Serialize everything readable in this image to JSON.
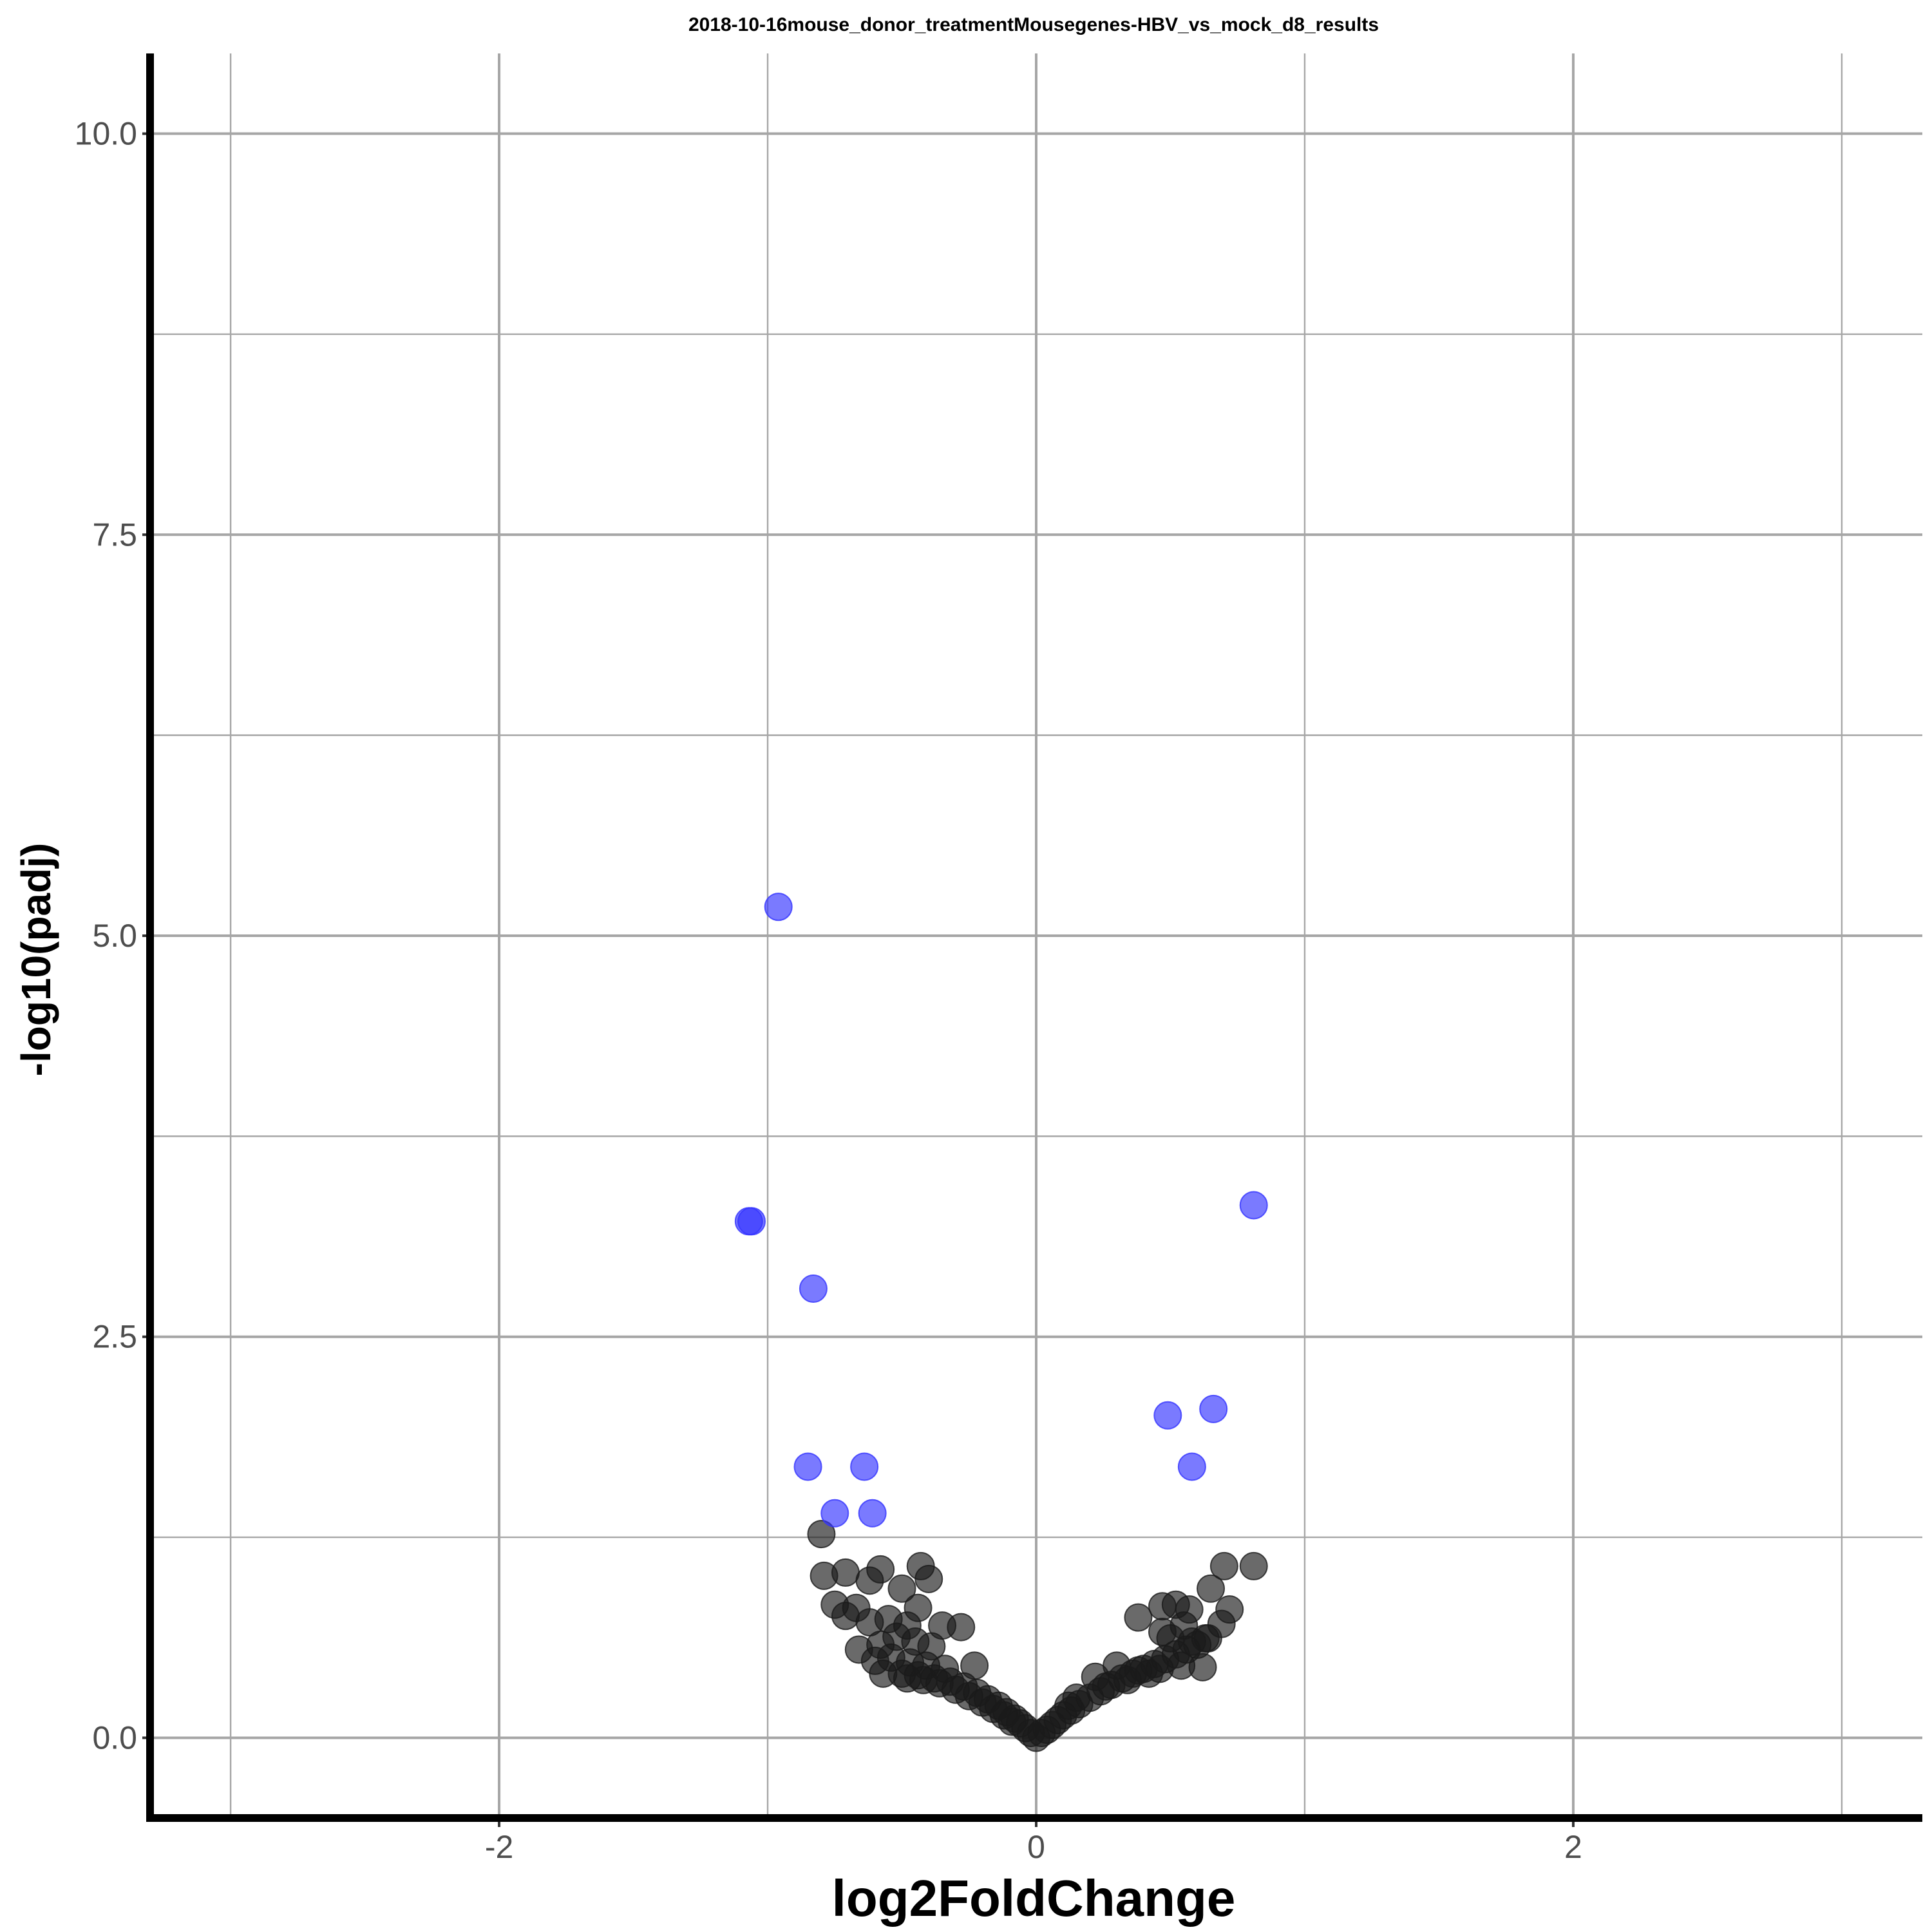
{
  "chart_data": {
    "type": "scatter",
    "title": "2018-10-16mouse_donor_treatmentMousegenes-HBV_vs_mock_d8_results",
    "xlabel": "log2FoldChange",
    "ylabel": "-log10(padj)",
    "xlim": [
      -3.3,
      3.3
    ],
    "ylim": [
      -0.5,
      10.5
    ],
    "x_ticks": [
      -2,
      0,
      2
    ],
    "x_tick_labels": [
      "-2",
      "0",
      "2"
    ],
    "x_minor": [
      -3,
      -1,
      1,
      3
    ],
    "y_ticks": [
      0,
      2.5,
      5,
      7.5,
      10
    ],
    "y_tick_labels": [
      "0.0",
      "2.5",
      "5.0",
      "7.5",
      "10.0"
    ],
    "y_minor": [
      1.25,
      3.75,
      6.25,
      8.75
    ],
    "grid": true,
    "legend": "none",
    "colors": {
      "significant": "#3333ff",
      "not_significant": "#1a1a1a",
      "grid": "#a6a6a6",
      "axis": "#000000"
    },
    "series": [
      {
        "points": [
          [
            -0.96,
            5.18
          ],
          [
            -1.07,
            3.22
          ],
          [
            -1.06,
            3.22
          ],
          [
            -0.83,
            2.8
          ],
          [
            -0.85,
            1.69
          ],
          [
            -0.64,
            1.69
          ],
          [
            -0.75,
            1.4
          ],
          [
            -0.61,
            1.4
          ],
          [
            0.49,
            2.01
          ],
          [
            0.66,
            2.05
          ],
          [
            0.58,
            1.69
          ],
          [
            0.81,
            3.32
          ]
        ]
      },
      {
        "points": [
          [
            -0.8,
            1.27
          ],
          [
            -0.79,
            1.01
          ],
          [
            -0.71,
            1.03
          ],
          [
            -0.62,
            0.98
          ],
          [
            -0.58,
            1.05
          ],
          [
            -0.43,
            1.07
          ],
          [
            -0.4,
            0.99
          ],
          [
            -0.5,
            0.93
          ],
          [
            -0.75,
            0.83
          ],
          [
            -0.67,
            0.81
          ],
          [
            -0.44,
            0.81
          ],
          [
            -0.71,
            0.76
          ],
          [
            -0.62,
            0.72
          ],
          [
            -0.55,
            0.74
          ],
          [
            -0.48,
            0.7
          ],
          [
            -0.35,
            0.7
          ],
          [
            -0.28,
            0.69
          ],
          [
            -0.52,
            0.63
          ],
          [
            -0.45,
            0.6
          ],
          [
            -0.39,
            0.57
          ],
          [
            -0.58,
            0.58
          ],
          [
            -0.66,
            0.55
          ],
          [
            -0.6,
            0.48
          ],
          [
            -0.54,
            0.5
          ],
          [
            -0.47,
            0.47
          ],
          [
            -0.41,
            0.45
          ],
          [
            -0.34,
            0.43
          ],
          [
            -0.23,
            0.45
          ],
          [
            -0.57,
            0.4
          ],
          [
            -0.5,
            0.4
          ],
          [
            -0.44,
            0.39
          ],
          [
            -0.38,
            0.37
          ],
          [
            -0.32,
            0.35
          ],
          [
            -0.27,
            0.32
          ],
          [
            -0.22,
            0.28
          ],
          [
            -0.18,
            0.24
          ],
          [
            -0.14,
            0.2
          ],
          [
            -0.11,
            0.16
          ],
          [
            -0.08,
            0.12
          ],
          [
            -0.06,
            0.09
          ],
          [
            -0.04,
            0.06
          ],
          [
            -0.02,
            0.03
          ],
          [
            -0.3,
            0.3
          ],
          [
            -0.25,
            0.26
          ],
          [
            -0.36,
            0.34
          ],
          [
            -0.42,
            0.36
          ],
          [
            -0.48,
            0.37
          ],
          [
            -0.2,
            0.22
          ],
          [
            -0.16,
            0.18
          ],
          [
            -0.12,
            0.14
          ],
          [
            -0.09,
            0.1
          ],
          [
            0.0,
            0.0
          ],
          [
            0.02,
            0.03
          ],
          [
            0.04,
            0.05
          ],
          [
            0.06,
            0.08
          ],
          [
            0.08,
            0.11
          ],
          [
            0.1,
            0.14
          ],
          [
            0.13,
            0.17
          ],
          [
            0.16,
            0.21
          ],
          [
            0.2,
            0.25
          ],
          [
            0.24,
            0.29
          ],
          [
            0.28,
            0.33
          ],
          [
            0.32,
            0.37
          ],
          [
            0.36,
            0.4
          ],
          [
            0.4,
            0.43
          ],
          [
            0.44,
            0.46
          ],
          [
            0.48,
            0.49
          ],
          [
            0.52,
            0.52
          ],
          [
            0.56,
            0.55
          ],
          [
            0.6,
            0.58
          ],
          [
            0.64,
            0.62
          ],
          [
            0.22,
            0.38
          ],
          [
            0.3,
            0.45
          ],
          [
            0.38,
            0.42
          ],
          [
            0.46,
            0.43
          ],
          [
            0.54,
            0.45
          ],
          [
            0.62,
            0.44
          ],
          [
            0.38,
            0.75
          ],
          [
            0.47,
            0.82
          ],
          [
            0.52,
            0.83
          ],
          [
            0.57,
            0.8
          ],
          [
            0.63,
            0.62
          ],
          [
            0.69,
            0.71
          ],
          [
            0.72,
            0.8
          ],
          [
            0.65,
            0.93
          ],
          [
            0.7,
            1.07
          ],
          [
            0.81,
            1.07
          ],
          [
            0.5,
            0.62
          ],
          [
            0.58,
            0.6
          ],
          [
            0.47,
            0.66
          ],
          [
            0.55,
            0.7
          ],
          [
            0.15,
            0.25
          ],
          [
            0.12,
            0.2
          ],
          [
            0.26,
            0.32
          ],
          [
            0.34,
            0.36
          ],
          [
            0.42,
            0.4
          ]
        ]
      }
    ]
  }
}
